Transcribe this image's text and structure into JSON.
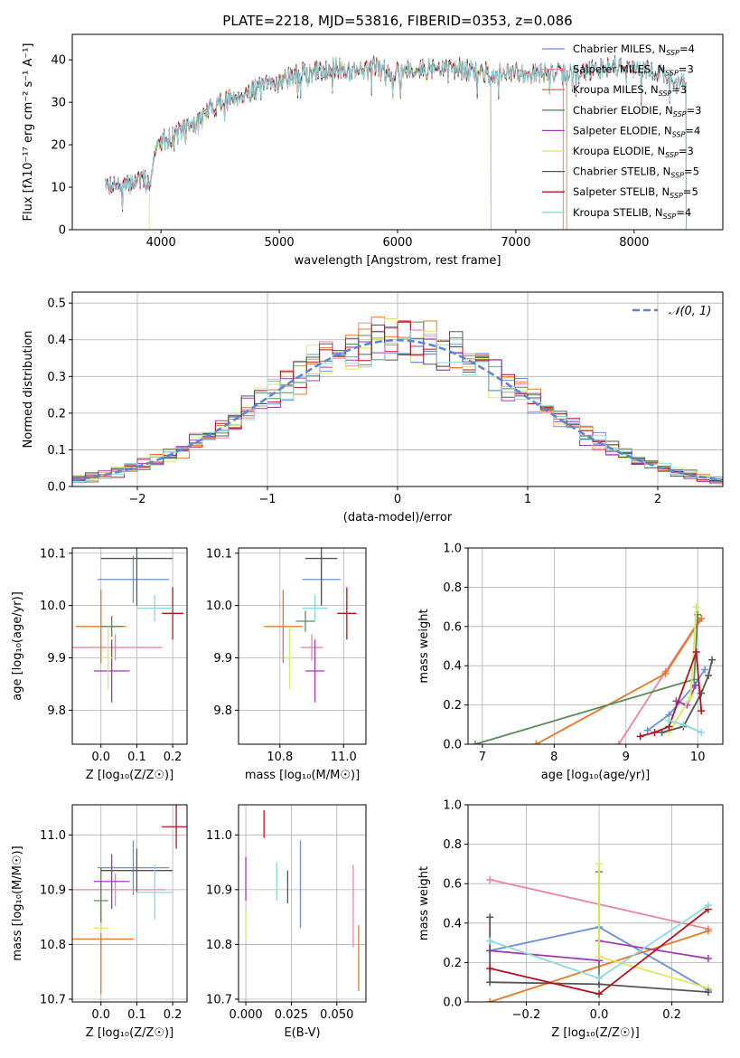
{
  "colors": {
    "Chabrier MILES": "#6a8fd8",
    "Salpeter MILES": "#e7869a",
    "Kroupa MILES": "#e2782a",
    "Chabrier ELODIE": "#5a8a5a",
    "Salpeter ELODIE": "#a03ab0",
    "Kroupa ELODIE": "#dbe866",
    "Chabrier STELIB": "#555555",
    "Salpeter STELIB": "#b0141e",
    "Kroupa STELIB": "#8ed8dd"
  },
  "chart_data": [
    {
      "id": "spectrum",
      "type": "line",
      "title": "PLATE=2218, MJD=53816, FIBERID=0353, z=0.086",
      "xlabel": "wavelength [Angstrom, rest frame]",
      "ylabel": "Flux [fλ10⁻¹⁷ erg cm⁻² s⁻¹ A⁻¹]",
      "xlim": [
        3250,
        8750
      ],
      "ylim": [
        0,
        46
      ],
      "xticks": [
        "4000",
        "5000",
        "6000",
        "7000",
        "8000"
      ],
      "yticks": [
        "0",
        "10",
        "20",
        "30",
        "40"
      ],
      "grid": false,
      "legend_position": "upper-right",
      "legend": [
        {
          "model": "Chabrier MILES",
          "nssp": "4"
        },
        {
          "model": "Salpeter MILES",
          "nssp": "3"
        },
        {
          "model": "Kroupa MILES",
          "nssp": "3"
        },
        {
          "model": "Chabrier ELODIE",
          "nssp": "3"
        },
        {
          "model": "Salpeter ELODIE",
          "nssp": "4"
        },
        {
          "model": "Kroupa ELODIE",
          "nssp": "3"
        },
        {
          "model": "Chabrier STELIB",
          "nssp": "5"
        },
        {
          "model": "Salpeter STELIB",
          "nssp": "5"
        },
        {
          "model": "Kroupa STELIB",
          "nssp": "4"
        }
      ],
      "continuum": [
        [
          3525,
          10
        ],
        [
          3600,
          11
        ],
        [
          3700,
          10
        ],
        [
          3800,
          12
        ],
        [
          3900,
          11
        ],
        [
          3950,
          18
        ],
        [
          4000,
          21
        ],
        [
          4100,
          22
        ],
        [
          4200,
          24
        ],
        [
          4300,
          25
        ],
        [
          4400,
          28
        ],
        [
          4500,
          30
        ],
        [
          4600,
          31
        ],
        [
          4700,
          32
        ],
        [
          4800,
          33
        ],
        [
          4900,
          34
        ],
        [
          5000,
          35
        ],
        [
          5100,
          36
        ],
        [
          5200,
          37
        ],
        [
          5300,
          37
        ],
        [
          5400,
          38
        ],
        [
          5500,
          38
        ],
        [
          5600,
          37.5
        ],
        [
          5700,
          38
        ],
        [
          5800,
          38.5
        ],
        [
          5900,
          37
        ],
        [
          6000,
          37.5
        ],
        [
          6100,
          38
        ],
        [
          6200,
          37.5
        ],
        [
          6300,
          38
        ],
        [
          6400,
          38
        ],
        [
          6500,
          38
        ],
        [
          6600,
          37.5
        ],
        [
          6700,
          37
        ],
        [
          6800,
          37
        ],
        [
          6900,
          36.5
        ],
        [
          7000,
          37
        ],
        [
          7100,
          37
        ],
        [
          7200,
          36.5
        ],
        [
          7300,
          37
        ],
        [
          7400,
          36.5
        ],
        [
          7500,
          37
        ],
        [
          7600,
          37.5
        ],
        [
          7700,
          38
        ],
        [
          7800,
          38.5
        ],
        [
          7900,
          38.5
        ],
        [
          8000,
          38
        ],
        [
          8100,
          37.5
        ],
        [
          8200,
          37
        ],
        [
          8300,
          36
        ],
        [
          8400,
          35
        ],
        [
          8500,
          33
        ]
      ],
      "x_range_by_model": {
        "Chabrier MILES": [
          3525,
          7400
        ],
        "Salpeter MILES": [
          3525,
          7400
        ],
        "Kroupa MILES": [
          3525,
          7430
        ],
        "Chabrier ELODIE": [
          3525,
          6790
        ],
        "Salpeter ELODIE": [
          3525,
          6790
        ],
        "Kroupa ELODIE": [
          3900,
          6790
        ],
        "Chabrier STELIB": [
          3525,
          8440
        ],
        "Salpeter STELIB": [
          3525,
          8440
        ],
        "Kroupa STELIB": [
          3525,
          8440
        ]
      }
    },
    {
      "id": "residuals",
      "type": "histogram",
      "xlabel": "(data-model)/error",
      "ylabel": "Normed distribution",
      "xlim": [
        -2.5,
        2.5
      ],
      "ylim": [
        0,
        0.53
      ],
      "xticks": [
        "−2",
        "−1",
        "0",
        "1",
        "2"
      ],
      "yticks": [
        "0.0",
        "0.1",
        "0.2",
        "0.3",
        "0.4",
        "0.5"
      ],
      "grid": true,
      "legend_position": "upper-right",
      "legend_label": "𝒩(0, 1)",
      "bins": [
        -2.5,
        2.5,
        50
      ],
      "reference_curve": "normal(0,1) dashed"
    },
    {
      "id": "age-vs-Z",
      "type": "errorbar",
      "xlabel": "Z [log₁₀(Z/Z☉)]",
      "ylabel": "age  [log₁₀(age/yr)]",
      "xlim": [
        -0.08,
        0.24
      ],
      "ylim": [
        9.735,
        10.11
      ],
      "xticks": [
        "0.0",
        "0.1",
        "0.2"
      ],
      "yticks": [
        "9.8",
        "9.9",
        "10.0",
        "10.1"
      ],
      "grid": true,
      "points": [
        {
          "model": "Chabrier MILES",
          "x": 0.09,
          "xerr": 0.1,
          "y": 10.05,
          "yerr": 0.045
        },
        {
          "model": "Salpeter MILES",
          "x": 0.04,
          "xerr": 0.13,
          "y": 9.92,
          "yerr": 0.025
        },
        {
          "model": "Kroupa MILES",
          "x": 0.0,
          "xerr": 0.07,
          "y": 9.96,
          "yerr": 0.07
        },
        {
          "model": "Chabrier ELODIE",
          "x": 0.03,
          "xerr": 0.03,
          "y": 9.96,
          "yerr": 0.02
        },
        {
          "model": "Salpeter ELODIE",
          "x": 0.03,
          "xerr": 0.05,
          "y": 9.875,
          "yerr": 0.06
        },
        {
          "model": "Kroupa ELODIE",
          "x": 0.02,
          "xerr": 0.02,
          "y": 9.9,
          "yerr": 0.06
        },
        {
          "model": "Chabrier STELIB",
          "x": 0.1,
          "xerr": 0.1,
          "y": 10.09,
          "yerr": 0.09
        },
        {
          "model": "Salpeter STELIB",
          "x": 0.2,
          "xerr": 0.03,
          "y": 9.985,
          "yerr": 0.05
        },
        {
          "model": "Kroupa STELIB",
          "x": 0.15,
          "xerr": 0.05,
          "y": 9.995,
          "yerr": 0.025
        }
      ]
    },
    {
      "id": "age-vs-mass",
      "type": "errorbar",
      "xlabel": "mass [log₁₀(M/M☉)]",
      "ylabel": "",
      "xlim": [
        10.67,
        11.07
      ],
      "ylim": [
        9.735,
        10.11
      ],
      "xticks": [
        "10.8",
        "11.0"
      ],
      "yticks": [
        "9.8",
        "9.9",
        "10.0",
        "10.1"
      ],
      "grid": true,
      "points": [
        {
          "model": "Chabrier MILES",
          "x": 10.93,
          "xerr": 0.06,
          "y": 10.05,
          "yerr": 0.045
        },
        {
          "model": "Salpeter MILES",
          "x": 10.9,
          "xerr": 0.035,
          "y": 9.92,
          "yerr": 0.025
        },
        {
          "model": "Kroupa MILES",
          "x": 10.81,
          "xerr": 0.06,
          "y": 9.96,
          "yerr": 0.07
        },
        {
          "model": "Chabrier ELODIE",
          "x": 10.88,
          "xerr": 0.03,
          "y": 9.97,
          "yerr": 0.02
        },
        {
          "model": "Salpeter ELODIE",
          "x": 10.91,
          "xerr": 0.03,
          "y": 9.875,
          "yerr": 0.06
        },
        {
          "model": "Kroupa ELODIE",
          "x": 10.83,
          "xerr": 0.01,
          "y": 9.9,
          "yerr": 0.06
        },
        {
          "model": "Chabrier STELIB",
          "x": 10.93,
          "xerr": 0.05,
          "y": 10.09,
          "yerr": 0.09
        },
        {
          "model": "Salpeter STELIB",
          "x": 11.01,
          "xerr": 0.03,
          "y": 9.985,
          "yerr": 0.05
        },
        {
          "model": "Kroupa STELIB",
          "x": 10.91,
          "xerr": 0.04,
          "y": 9.995,
          "yerr": 0.025
        }
      ]
    },
    {
      "id": "massweight-vs-age",
      "type": "line",
      "xlabel": "age  [log₁₀(age/yr)]",
      "ylabel": "mass weight",
      "xlim": [
        6.8,
        10.35
      ],
      "ylim": [
        0,
        1.0
      ],
      "xticks": [
        "7",
        "8",
        "9",
        "10"
      ],
      "yticks": [
        "0.0",
        "0.2",
        "0.4",
        "0.6",
        "0.8",
        "1.0"
      ],
      "grid": true,
      "series": [
        {
          "model": "Chabrier MILES",
          "x": [
            9.3,
            9.6,
            9.95,
            10.1
          ],
          "y": [
            0.07,
            0.15,
            0.3,
            0.38
          ]
        },
        {
          "model": "Salpeter MILES",
          "x": [
            8.9,
            9.55,
            10.02
          ],
          "y": [
            0.0,
            0.37,
            0.63
          ]
        },
        {
          "model": "Kroupa MILES",
          "x": [
            7.75,
            9.55,
            10.05
          ],
          "y": [
            0.0,
            0.36,
            0.64
          ]
        },
        {
          "model": "Chabrier ELODIE",
          "x": [
            6.9,
            9.95,
            10.0
          ],
          "y": [
            0.0,
            0.33,
            0.66
          ]
        },
        {
          "model": "Salpeter ELODIE",
          "x": [
            9.7,
            9.85,
            9.97
          ],
          "y": [
            0.22,
            0.2,
            0.3
          ]
        },
        {
          "model": "Kroupa ELODIE",
          "x": [
            9.6,
            9.9,
            9.98
          ],
          "y": [
            0.06,
            0.24,
            0.7
          ]
        },
        {
          "model": "Chabrier STELIB",
          "x": [
            9.5,
            9.8,
            10.05,
            10.15,
            10.2
          ],
          "y": [
            0.06,
            0.09,
            0.26,
            0.35,
            0.43
          ]
        },
        {
          "model": "Salpeter STELIB",
          "x": [
            9.2,
            9.4,
            9.6,
            9.98,
            10.05
          ],
          "y": [
            0.04,
            0.06,
            0.09,
            0.47,
            0.17
          ]
        },
        {
          "model": "Kroupa STELIB",
          "x": [
            9.6,
            9.8,
            10.05
          ],
          "y": [
            0.12,
            0.1,
            0.06
          ]
        }
      ]
    },
    {
      "id": "mass-vs-Z",
      "type": "errorbar",
      "xlabel": "Z [log₁₀(Z/Z☉)]",
      "ylabel": "mass [log₁₀(M/M☉)]",
      "xlim": [
        -0.08,
        0.24
      ],
      "ylim": [
        10.695,
        11.055
      ],
      "xticks": [
        "0.0",
        "0.1",
        "0.2"
      ],
      "yticks": [
        "10.7",
        "10.8",
        "10.9",
        "11.0"
      ],
      "grid": true,
      "points": [
        {
          "model": "Chabrier MILES",
          "x": 0.09,
          "xerr": 0.1,
          "y": 10.94,
          "yerr": 0.05
        },
        {
          "model": "Salpeter MILES",
          "x": 0.04,
          "xerr": 0.14,
          "y": 10.9,
          "yerr": 0.03
        },
        {
          "model": "Kroupa MILES",
          "x": 0.0,
          "xerr": 0.09,
          "y": 10.81,
          "yerr": 0.1
        },
        {
          "model": "Chabrier ELODIE",
          "x": 0.0,
          "xerr": 0.02,
          "y": 10.88,
          "yerr": 0.06
        },
        {
          "model": "Salpeter ELODIE",
          "x": 0.03,
          "xerr": 0.05,
          "y": 10.915,
          "yerr": 0.05
        },
        {
          "model": "Kroupa ELODIE",
          "x": 0.0,
          "xerr": 0.02,
          "y": 10.83,
          "yerr": 0.01
        },
        {
          "model": "Chabrier STELIB",
          "x": 0.1,
          "xerr": 0.1,
          "y": 10.935,
          "yerr": 0.04
        },
        {
          "model": "Salpeter STELIB",
          "x": 0.21,
          "xerr": 0.04,
          "y": 11.015,
          "yerr": 0.04
        },
        {
          "model": "Kroupa STELIB",
          "x": 0.15,
          "xerr": 0.05,
          "y": 10.895,
          "yerr": 0.05
        }
      ]
    },
    {
      "id": "mass-vs-EBV",
      "type": "errorbar",
      "xlabel": "E(B-V)",
      "ylabel": "",
      "xlim": [
        -0.004,
        0.066
      ],
      "ylim": [
        10.695,
        11.055
      ],
      "xticks": [
        "0.000",
        "0.025",
        "0.050"
      ],
      "yticks": [
        "10.7",
        "10.8",
        "10.9",
        "11.0"
      ],
      "grid": true,
      "points": [
        {
          "model": "Chabrier MILES",
          "x": 0.03,
          "y": 10.91,
          "yerr": 0.08
        },
        {
          "model": "Salpeter MILES",
          "x": 0.059,
          "y": 10.87,
          "yerr": 0.075
        },
        {
          "model": "Kroupa MILES",
          "x": 0.062,
          "y": 10.775,
          "yerr": 0.06
        },
        {
          "model": "Salpeter ELODIE",
          "x": 0.0,
          "y": 10.92,
          "yerr": 0.04
        },
        {
          "model": "Kroupa ELODIE",
          "x": 0.0,
          "y": 10.835,
          "yerr": 0.025
        },
        {
          "model": "Chabrier STELIB",
          "x": 0.023,
          "y": 10.905,
          "yerr": 0.03
        },
        {
          "model": "Salpeter STELIB",
          "x": 0.01,
          "y": 11.02,
          "yerr": 0.025
        },
        {
          "model": "Kroupa STELIB",
          "x": 0.017,
          "y": 10.915,
          "yerr": 0.035
        }
      ]
    },
    {
      "id": "massweight-vs-Z",
      "type": "line",
      "xlabel": "Z [log₁₀(Z/Z☉)]",
      "ylabel": "mass weight",
      "xlim": [
        -0.36,
        0.34
      ],
      "ylim": [
        0,
        1.0
      ],
      "xticks": [
        "−0.2",
        "0.0",
        "0.2"
      ],
      "yticks": [
        "0.0",
        "0.2",
        "0.4",
        "0.6",
        "0.8",
        "1.0"
      ],
      "grid": true,
      "series": [
        {
          "model": "Chabrier MILES",
          "x": [
            -0.3,
            0.0,
            0.3
          ],
          "y": [
            0.26,
            0.38,
            0.06
          ]
        },
        {
          "model": "Salpeter MILES",
          "x": [
            -0.3,
            0.3
          ],
          "y": [
            0.62,
            0.37
          ]
        },
        {
          "model": "Kroupa MILES",
          "x": [
            -0.3,
            0.3
          ],
          "y": [
            0.0,
            0.36
          ]
        },
        {
          "model": "Chabrier ELODIE",
          "x": [
            0.0,
            0.0
          ],
          "y": [
            0.66,
            0.09
          ]
        },
        {
          "model": "Salpeter ELODIE",
          "x": [
            -0.3,
            0.0,
            0.0,
            0.3
          ],
          "y": [
            0.26,
            0.21,
            0.31,
            0.22
          ]
        },
        {
          "model": "Kroupa ELODIE",
          "x": [
            0.0,
            0.0,
            0.3
          ],
          "y": [
            0.7,
            0.23,
            0.07
          ]
        },
        {
          "model": "Chabrier STELIB",
          "x": [
            -0.3,
            -0.3,
            0.0,
            0.3
          ],
          "y": [
            0.43,
            0.1,
            0.09,
            0.05
          ]
        },
        {
          "model": "Salpeter STELIB",
          "x": [
            -0.3,
            0.0,
            0.3
          ],
          "y": [
            0.17,
            0.04,
            0.47
          ]
        },
        {
          "model": "Kroupa STELIB",
          "x": [
            -0.3,
            0.0,
            0.3
          ],
          "y": [
            0.31,
            0.12,
            0.49
          ]
        }
      ]
    }
  ]
}
